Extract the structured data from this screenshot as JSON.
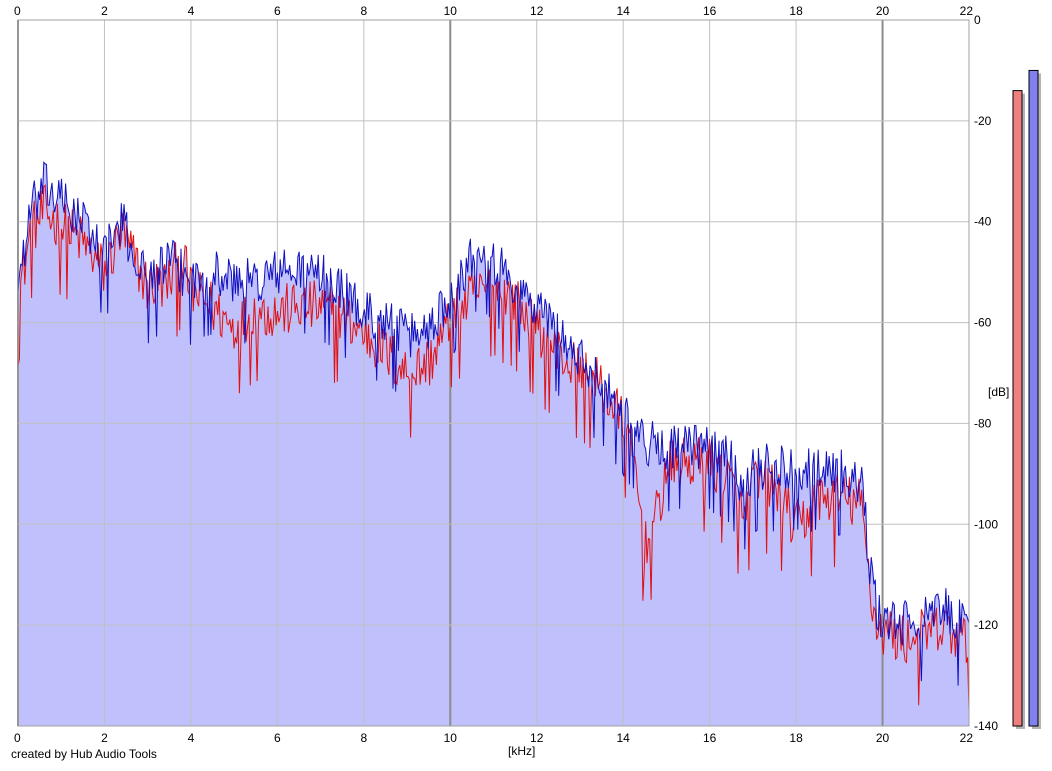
{
  "chart_data": {
    "type": "area",
    "xlabel": "[kHz]",
    "ylabel": "[dB]",
    "xlim": [
      0,
      22
    ],
    "ylim": [
      -140,
      0
    ],
    "x_ticks": [
      "0",
      "2",
      "4",
      "6",
      "8",
      "10",
      "12",
      "14",
      "16",
      "18",
      "20",
      "22"
    ],
    "y_ticks": [
      "0",
      "-20",
      "-40",
      "-60",
      "-80",
      "-100",
      "-120",
      "-140"
    ],
    "grid": true,
    "credit": "created by Hub Audio Tools",
    "colors": {
      "fill": "#c0c0fc",
      "series_a": "#e01010",
      "series_b": "#1010c0",
      "meter_a": "#f08080",
      "meter_b": "#8080f0",
      "grid": "#c0c0c0",
      "grid_major": "#8c8c8c"
    },
    "series": [
      {
        "color": "#e01010",
        "envelope": [
          [
            0,
            -55
          ],
          [
            0.3,
            -42
          ],
          [
            0.6,
            -38
          ],
          [
            1.0,
            -41
          ],
          [
            1.5,
            -44
          ],
          [
            2.0,
            -50
          ],
          [
            2.4,
            -42
          ],
          [
            2.6,
            -46
          ],
          [
            3.0,
            -53
          ],
          [
            3.5,
            -52
          ],
          [
            3.8,
            -47
          ],
          [
            4.0,
            -54
          ],
          [
            4.5,
            -57
          ],
          [
            5.0,
            -61
          ],
          [
            5.5,
            -58
          ],
          [
            6.0,
            -58
          ],
          [
            6.5,
            -57
          ],
          [
            7.0,
            -57
          ],
          [
            7.5,
            -59
          ],
          [
            8.0,
            -62
          ],
          [
            8.5,
            -66
          ],
          [
            9.0,
            -70
          ],
          [
            9.5,
            -68
          ],
          [
            10.0,
            -60
          ],
          [
            10.5,
            -55
          ],
          [
            11.0,
            -53
          ],
          [
            11.5,
            -56
          ],
          [
            12.0,
            -62
          ],
          [
            12.5,
            -66
          ],
          [
            13.0,
            -70
          ],
          [
            13.5,
            -73
          ],
          [
            14.0,
            -80
          ],
          [
            14.3,
            -90
          ],
          [
            14.5,
            -105
          ],
          [
            14.8,
            -98
          ],
          [
            15.0,
            -89
          ],
          [
            15.5,
            -88
          ],
          [
            16.0,
            -88
          ],
          [
            16.5,
            -92
          ],
          [
            16.8,
            -100
          ],
          [
            17.0,
            -92
          ],
          [
            17.5,
            -93
          ],
          [
            18.0,
            -101
          ],
          [
            18.3,
            -98
          ],
          [
            18.5,
            -95
          ],
          [
            19.0,
            -95
          ],
          [
            19.5,
            -96
          ],
          [
            19.8,
            -118
          ],
          [
            20.0,
            -121
          ],
          [
            20.5,
            -123
          ],
          [
            21.0,
            -122
          ],
          [
            21.5,
            -121
          ],
          [
            22.0,
            -124
          ]
        ],
        "noise": 5.5
      },
      {
        "color": "#1010c0",
        "envelope": [
          [
            0,
            -52
          ],
          [
            0.3,
            -38
          ],
          [
            0.6,
            -33
          ],
          [
            1.0,
            -36
          ],
          [
            1.5,
            -40
          ],
          [
            2.0,
            -47
          ],
          [
            2.4,
            -40
          ],
          [
            2.6,
            -45
          ],
          [
            3.0,
            -52
          ],
          [
            3.5,
            -48
          ],
          [
            4.0,
            -52
          ],
          [
            4.5,
            -50
          ],
          [
            5.0,
            -52
          ],
          [
            5.5,
            -52
          ],
          [
            6.0,
            -50
          ],
          [
            6.5,
            -50
          ],
          [
            7.0,
            -51
          ],
          [
            7.5,
            -54
          ],
          [
            8.0,
            -58
          ],
          [
            8.5,
            -60
          ],
          [
            9.0,
            -63
          ],
          [
            9.5,
            -61
          ],
          [
            10.0,
            -55
          ],
          [
            10.5,
            -47
          ],
          [
            10.7,
            -44
          ],
          [
            11.0,
            -48
          ],
          [
            11.5,
            -53
          ],
          [
            12.0,
            -57
          ],
          [
            12.5,
            -62
          ],
          [
            13.0,
            -68
          ],
          [
            13.5,
            -72
          ],
          [
            14.0,
            -78
          ],
          [
            14.5,
            -84
          ],
          [
            15.0,
            -85
          ],
          [
            15.5,
            -85
          ],
          [
            16.0,
            -85
          ],
          [
            16.5,
            -88
          ],
          [
            16.8,
            -93
          ],
          [
            17.0,
            -89
          ],
          [
            17.5,
            -89
          ],
          [
            18.0,
            -89
          ],
          [
            18.5,
            -89
          ],
          [
            19.0,
            -90
          ],
          [
            19.5,
            -92
          ],
          [
            19.8,
            -115
          ],
          [
            20.0,
            -119
          ],
          [
            20.5,
            -120
          ],
          [
            21.0,
            -119
          ],
          [
            21.5,
            -117
          ],
          [
            22.0,
            -122
          ]
        ],
        "noise": 5.0
      }
    ],
    "meters": [
      {
        "color": "#f08080",
        "level_db": -14
      },
      {
        "color": "#8080f0",
        "level_db": -10
      }
    ]
  }
}
